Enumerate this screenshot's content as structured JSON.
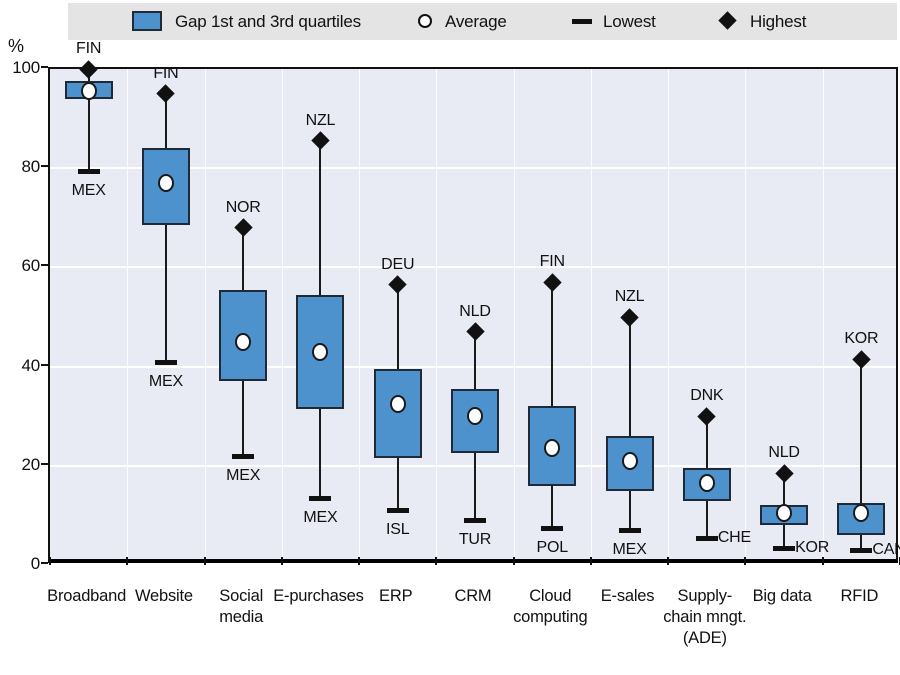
{
  "legend": {
    "gap_label": "Gap 1st and 3rd quartiles",
    "average_label": "Average",
    "lowest_label": "Lowest",
    "highest_label": "Highest"
  },
  "y_axis": {
    "unit": "%",
    "ticks": [
      0,
      20,
      40,
      60,
      80,
      100
    ]
  },
  "colors": {
    "box_fill": "#4d92cc",
    "box_border": "#1e2a38",
    "plot_background": "#e8ebf3",
    "legend_background": "#e4e4e4",
    "marker": "#111111",
    "gridline": "#ffffff"
  },
  "chart_data": {
    "type": "boxplot",
    "title": "",
    "ylabel": "%",
    "ylim": [
      0,
      100
    ],
    "y_ticks": [
      0,
      20,
      40,
      60,
      80,
      100
    ],
    "grid": "horizontal-white",
    "legend_position": "top",
    "categories": [
      "Broadband",
      "Website",
      "Social media",
      "E-purchases",
      "ERP",
      "CRM",
      "Cloud computing",
      "E-sales",
      "Supply-chain mngt. (ADE)",
      "Big data",
      "RFID"
    ],
    "series": [
      {
        "category_lines": [
          "Broadband"
        ],
        "highest": 100,
        "highest_country": "FIN",
        "q3": 97.5,
        "average": 95.5,
        "q1": 94,
        "lowest": 79.5,
        "lowest_country": "MEX",
        "lowest_label_side": "below"
      },
      {
        "category_lines": [
          "Website"
        ],
        "highest": 95,
        "highest_country": "FIN",
        "q3": 84,
        "average": 77,
        "q1": 68.5,
        "lowest": 41,
        "lowest_country": "MEX",
        "lowest_label_side": "below"
      },
      {
        "category_lines": [
          "Social",
          "media"
        ],
        "highest": 68,
        "highest_country": "NOR",
        "q3": 55.5,
        "average": 45,
        "q1": 37,
        "lowest": 22,
        "lowest_country": "MEX",
        "lowest_label_side": "below"
      },
      {
        "category_lines": [
          "E-purchases"
        ],
        "highest": 85.5,
        "highest_country": "NZL",
        "q3": 54.5,
        "average": 43,
        "q1": 31.5,
        "lowest": 13.5,
        "lowest_country": "MEX",
        "lowest_label_side": "below"
      },
      {
        "category_lines": [
          "ERP"
        ],
        "highest": 56.5,
        "highest_country": "DEU",
        "q3": 39.5,
        "average": 32.5,
        "q1": 21.5,
        "lowest": 11,
        "lowest_country": "ISL",
        "lowest_label_side": "below"
      },
      {
        "category_lines": [
          "CRM"
        ],
        "highest": 47,
        "highest_country": "NLD",
        "q3": 35.5,
        "average": 30,
        "q1": 22.5,
        "lowest": 9,
        "lowest_country": "TUR",
        "lowest_label_side": "below"
      },
      {
        "category_lines": [
          "Cloud",
          "computing"
        ],
        "highest": 57,
        "highest_country": "FIN",
        "q3": 32,
        "average": 23.5,
        "q1": 16,
        "lowest": 7.5,
        "lowest_country": "POL",
        "lowest_label_side": "below"
      },
      {
        "category_lines": [
          "E-sales"
        ],
        "highest": 50,
        "highest_country": "NZL",
        "q3": 26,
        "average": 21,
        "q1": 15,
        "lowest": 7,
        "lowest_country": "MEX",
        "lowest_label_side": "below"
      },
      {
        "category_lines": [
          "Supply-",
          "chain mngt.",
          "(ADE)"
        ],
        "highest": 30,
        "highest_country": "DNK",
        "q3": 19.5,
        "average": 16.5,
        "q1": 13,
        "lowest": 5.5,
        "lowest_country": "CHE",
        "lowest_label_side": "right"
      },
      {
        "category_lines": [
          "Big data"
        ],
        "highest": 18.5,
        "highest_country": "NLD",
        "q3": 12,
        "average": 10.5,
        "q1": 8,
        "lowest": 3.5,
        "lowest_country": "KOR",
        "lowest_label_side": "right"
      },
      {
        "category_lines": [
          "RFID"
        ],
        "highest": 41.5,
        "highest_country": "KOR",
        "q3": 12.5,
        "average": 10.5,
        "q1": 6,
        "lowest": 3,
        "lowest_country": "CAN",
        "lowest_label_side": "right"
      }
    ]
  }
}
